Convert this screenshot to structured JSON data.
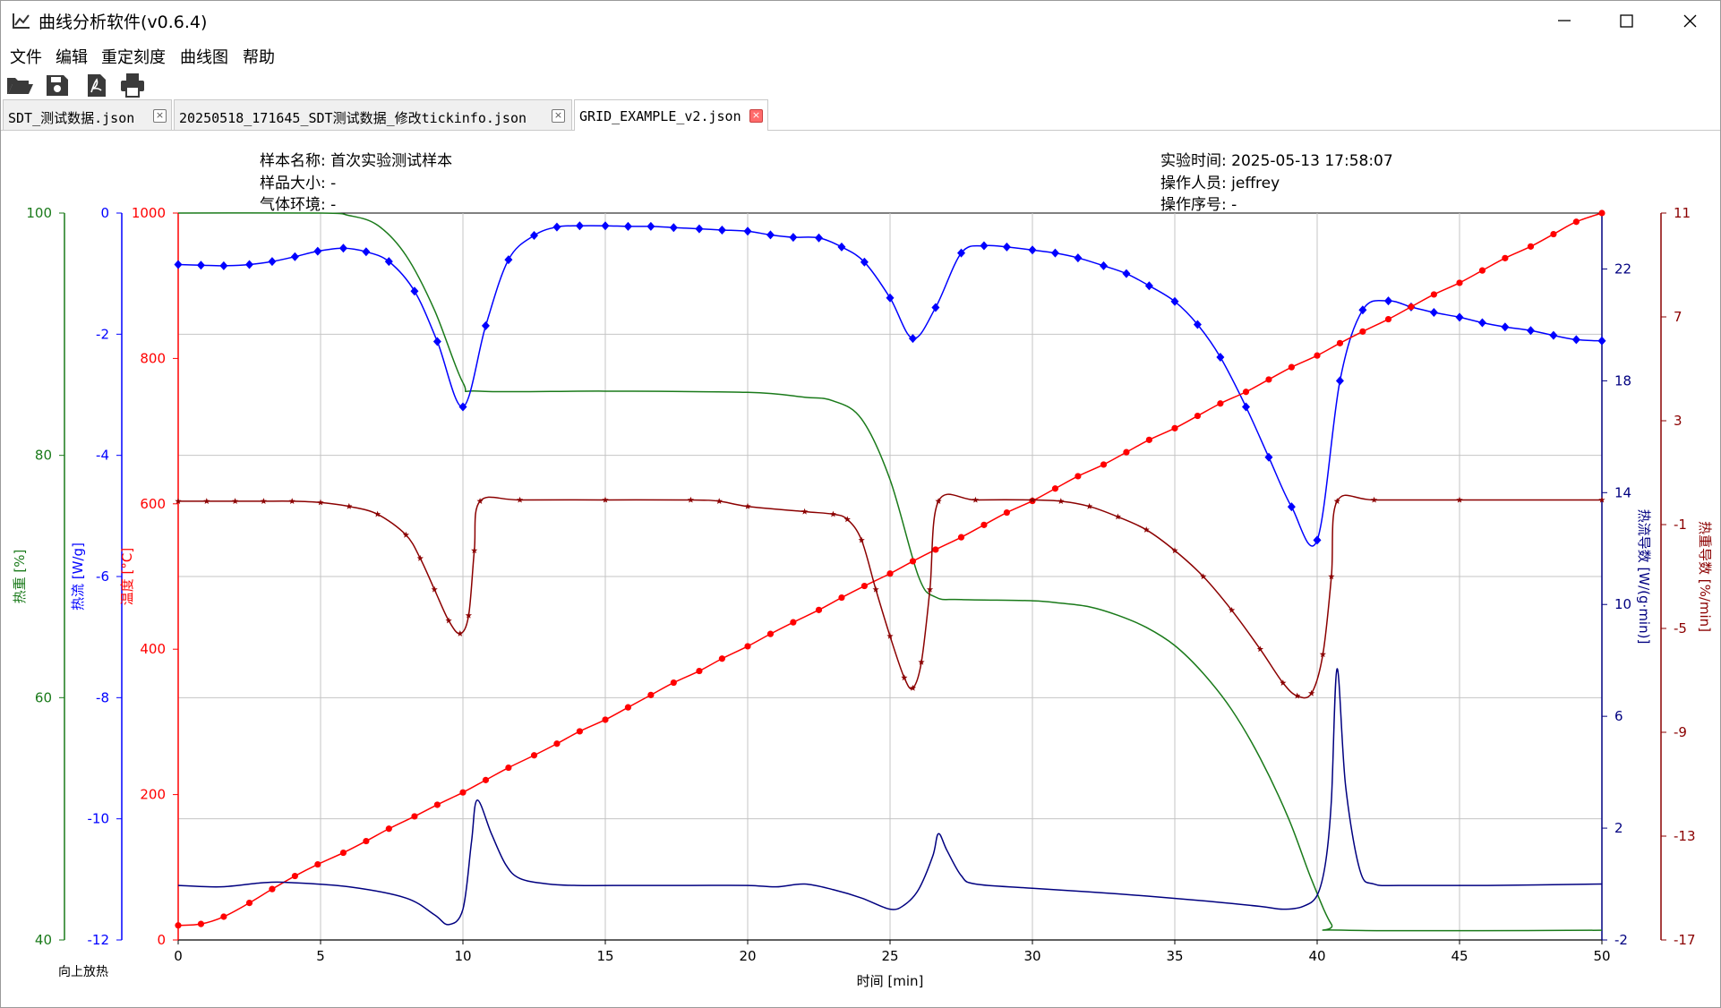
{
  "window": {
    "title": "曲线分析软件(v0.6.4)"
  },
  "menu": [
    "文件",
    "编辑",
    "重定刻度",
    "曲线图",
    "帮助"
  ],
  "toolbar": [
    {
      "icon": "folder-open-icon"
    },
    {
      "icon": "save-icon"
    },
    {
      "icon": "export-pdf-icon"
    },
    {
      "icon": "print-icon"
    }
  ],
  "tabs": [
    {
      "label": "SDT_测试数据.json",
      "active": false
    },
    {
      "label": "20250518_171645_SDT测试数据_修改tickinfo.json",
      "active": false
    },
    {
      "label": "GRID_EXAMPLE_v2.json",
      "active": true
    }
  ],
  "info": {
    "sample_name": "样本名称: 首次实验测试样本",
    "sample_size": "样品大小: -",
    "atmosphere": "气体环境: -",
    "exp_time": "实验时间: 2025-05-13 17:58:07",
    "operator": "操作人员: jeffrey",
    "op_number": "操作序号: -"
  },
  "colors": {
    "green": "#1a7a1a",
    "blue": "#0000ff",
    "red": "#ff0000",
    "navy": "#000080",
    "darkred": "#8b0000"
  },
  "chart_data": {
    "type": "line",
    "grid": true,
    "xlabel": "时间 [min]",
    "xlim": [
      0,
      50
    ],
    "xticks": [
      0,
      5,
      10,
      15,
      20,
      25,
      30,
      35,
      40,
      45,
      50
    ],
    "footnote": "向上放热",
    "axes": [
      {
        "id": "tg",
        "label": "热重 [%]",
        "side": "left",
        "color": "#1a7a1a",
        "lim": [
          40,
          100
        ],
        "ticks": [
          40,
          60,
          80,
          100
        ]
      },
      {
        "id": "hf",
        "label": "热流 [W/g]",
        "side": "left",
        "color": "#0000ff",
        "lim": [
          -12,
          0
        ],
        "ticks": [
          -12,
          -10,
          -8,
          -6,
          -4,
          -2,
          0
        ]
      },
      {
        "id": "temp",
        "label": "温度 [°C]",
        "side": "left",
        "color": "#ff0000",
        "lim": [
          0,
          1000
        ],
        "ticks": [
          0,
          200,
          400,
          600,
          800,
          1000
        ]
      },
      {
        "id": "dhf",
        "label": "热流导数 [W/(g·min)]",
        "side": "right",
        "color": "#000080",
        "lim": [
          -2,
          24
        ],
        "ticks": [
          -2,
          2,
          6,
          10,
          14,
          18,
          22
        ]
      },
      {
        "id": "dtg",
        "label": "热重导数 [%/min]",
        "side": "right",
        "color": "#8b0000",
        "lim": [
          -17,
          11
        ],
        "ticks": [
          -17,
          -13,
          -9,
          -5,
          -1,
          3,
          7,
          11
        ]
      }
    ],
    "series": [
      {
        "axis": "tg",
        "color": "#1a7a1a",
        "marker": "none",
        "points": [
          [
            0,
            100
          ],
          [
            5,
            100
          ],
          [
            6,
            99.8
          ],
          [
            7,
            99
          ],
          [
            8,
            96.5
          ],
          [
            9,
            92
          ],
          [
            10,
            86
          ],
          [
            10.6,
            85.3
          ],
          [
            15,
            85.3
          ],
          [
            20,
            85.2
          ],
          [
            22,
            84.8
          ],
          [
            23,
            84.5
          ],
          [
            24,
            83
          ],
          [
            25,
            78
          ],
          [
            26,
            70
          ],
          [
            26.6,
            68.3
          ],
          [
            27.5,
            68.1
          ],
          [
            30,
            68
          ],
          [
            31,
            67.8
          ],
          [
            32,
            67.5
          ],
          [
            33,
            66.8
          ],
          [
            34,
            65.8
          ],
          [
            35,
            64.3
          ],
          [
            36,
            62
          ],
          [
            37,
            59
          ],
          [
            38,
            55
          ],
          [
            39,
            50
          ],
          [
            39.8,
            45
          ],
          [
            40.5,
            41.3
          ],
          [
            41,
            40.8
          ],
          [
            50,
            40.8
          ]
        ]
      },
      {
        "axis": "hf",
        "color": "#0000ff",
        "marker": "diamond",
        "points": [
          [
            0,
            -0.85
          ],
          [
            0.8,
            -0.86
          ],
          [
            1.6,
            -0.87
          ],
          [
            2.5,
            -0.85
          ],
          [
            3.3,
            -0.8
          ],
          [
            4.1,
            -0.72
          ],
          [
            4.9,
            -0.63
          ],
          [
            5.8,
            -0.58
          ],
          [
            6.6,
            -0.64
          ],
          [
            7.4,
            -0.8
          ],
          [
            8.3,
            -1.29
          ],
          [
            9.1,
            -2.12
          ],
          [
            10,
            -3.2
          ],
          [
            10.8,
            -1.86
          ],
          [
            11.6,
            -0.77
          ],
          [
            12.5,
            -0.37
          ],
          [
            13.3,
            -0.23
          ],
          [
            14.1,
            -0.21
          ],
          [
            15,
            -0.21
          ],
          [
            15.8,
            -0.22
          ],
          [
            16.6,
            -0.22
          ],
          [
            17.4,
            -0.24
          ],
          [
            18.3,
            -0.26
          ],
          [
            19.1,
            -0.28
          ],
          [
            20,
            -0.3
          ],
          [
            20.8,
            -0.36
          ],
          [
            21.6,
            -0.4
          ],
          [
            22.5,
            -0.41
          ],
          [
            23.3,
            -0.56
          ],
          [
            24.1,
            -0.81
          ],
          [
            25,
            -1.4
          ],
          [
            25.8,
            -2.07
          ],
          [
            26.6,
            -1.56
          ],
          [
            27.5,
            -0.66
          ],
          [
            28.3,
            -0.54
          ],
          [
            29.1,
            -0.56
          ],
          [
            30,
            -0.61
          ],
          [
            30.8,
            -0.66
          ],
          [
            31.6,
            -0.74
          ],
          [
            32.5,
            -0.87
          ],
          [
            33.3,
            -1.0
          ],
          [
            34.1,
            -1.2
          ],
          [
            35,
            -1.46
          ],
          [
            35.8,
            -1.84
          ],
          [
            36.6,
            -2.38
          ],
          [
            37.5,
            -3.2
          ],
          [
            38.3,
            -4.03
          ],
          [
            39.1,
            -4.85
          ],
          [
            40,
            -5.4
          ],
          [
            40.8,
            -2.77
          ],
          [
            41.6,
            -1.6
          ],
          [
            42.5,
            -1.45
          ],
          [
            43.3,
            -1.55
          ],
          [
            44.1,
            -1.64
          ],
          [
            45,
            -1.72
          ],
          [
            45.8,
            -1.81
          ],
          [
            46.6,
            -1.88
          ],
          [
            47.5,
            -1.94
          ],
          [
            48.3,
            -2.02
          ],
          [
            49.1,
            -2.09
          ],
          [
            50,
            -2.11
          ]
        ]
      },
      {
        "axis": "temp",
        "color": "#ff0000",
        "marker": "circle",
        "points": [
          [
            0,
            20
          ],
          [
            0.8,
            22
          ],
          [
            1.6,
            32
          ],
          [
            2.5,
            51
          ],
          [
            3.3,
            70
          ],
          [
            4.1,
            88
          ],
          [
            4.9,
            104
          ],
          [
            5.8,
            120
          ],
          [
            6.6,
            136
          ],
          [
            7.4,
            153
          ],
          [
            8.3,
            170
          ],
          [
            9.1,
            186
          ],
          [
            10,
            203
          ],
          [
            10.8,
            220
          ],
          [
            11.6,
            237
          ],
          [
            12.5,
            254
          ],
          [
            13.3,
            270
          ],
          [
            14.1,
            287
          ],
          [
            15,
            303
          ],
          [
            15.8,
            320
          ],
          [
            16.6,
            337
          ],
          [
            17.4,
            354
          ],
          [
            18.3,
            370
          ],
          [
            19.1,
            387
          ],
          [
            20,
            404
          ],
          [
            20.8,
            421
          ],
          [
            21.6,
            437
          ],
          [
            22.5,
            454
          ],
          [
            23.3,
            471
          ],
          [
            24.1,
            487
          ],
          [
            25,
            504
          ],
          [
            25.8,
            521
          ],
          [
            26.6,
            537
          ],
          [
            27.5,
            554
          ],
          [
            28.3,
            571
          ],
          [
            29.1,
            588
          ],
          [
            30,
            604
          ],
          [
            30.8,
            621
          ],
          [
            31.6,
            638
          ],
          [
            32.5,
            654
          ],
          [
            33.3,
            671
          ],
          [
            34.1,
            688
          ],
          [
            35,
            704
          ],
          [
            35.8,
            721
          ],
          [
            36.6,
            738
          ],
          [
            37.5,
            754
          ],
          [
            38.3,
            771
          ],
          [
            39.1,
            788
          ],
          [
            40,
            804
          ],
          [
            40.8,
            821
          ],
          [
            41.6,
            837
          ],
          [
            42.5,
            854
          ],
          [
            43.3,
            871
          ],
          [
            44.1,
            888
          ],
          [
            45,
            904
          ],
          [
            45.8,
            921
          ],
          [
            46.6,
            938
          ],
          [
            47.5,
            954
          ],
          [
            48.3,
            971
          ],
          [
            49.1,
            988
          ],
          [
            50,
            1000
          ]
        ]
      },
      {
        "axis": "dhf",
        "color": "#000080",
        "marker": "none",
        "points": [
          [
            0,
            -0.05
          ],
          [
            1.5,
            -0.1
          ],
          [
            3,
            0.05
          ],
          [
            4,
            0.05
          ],
          [
            6,
            -0.1
          ],
          [
            8,
            -0.5
          ],
          [
            9,
            -1.1
          ],
          [
            9.5,
            -1.45
          ],
          [
            10,
            -0.9
          ],
          [
            10.3,
            1.5
          ],
          [
            10.5,
            3.0
          ],
          [
            11,
            1.8
          ],
          [
            11.5,
            0.7
          ],
          [
            12,
            0.2
          ],
          [
            13,
            0.0
          ],
          [
            14,
            -0.05
          ],
          [
            16,
            -0.05
          ],
          [
            18,
            -0.05
          ],
          [
            20,
            -0.05
          ],
          [
            21,
            -0.1
          ],
          [
            22,
            0.0
          ],
          [
            23,
            -0.2
          ],
          [
            24,
            -0.5
          ],
          [
            25,
            -0.9
          ],
          [
            25.5,
            -0.75
          ],
          [
            26,
            -0.2
          ],
          [
            26.5,
            1.0
          ],
          [
            26.7,
            1.8
          ],
          [
            27,
            1.2
          ],
          [
            27.5,
            0.3
          ],
          [
            28,
            0.0
          ],
          [
            30,
            -0.15
          ],
          [
            33,
            -0.35
          ],
          [
            36,
            -0.6
          ],
          [
            38,
            -0.8
          ],
          [
            38.8,
            -0.9
          ],
          [
            39.5,
            -0.8
          ],
          [
            40,
            -0.4
          ],
          [
            40.3,
            0.8
          ],
          [
            40.5,
            3.0
          ],
          [
            40.7,
            7.7
          ],
          [
            41,
            3.5
          ],
          [
            41.5,
            0.5
          ],
          [
            42,
            0.0
          ],
          [
            43,
            -0.05
          ],
          [
            46,
            -0.05
          ],
          [
            50,
            0.0
          ]
        ]
      },
      {
        "axis": "dtg",
        "color": "#8b0000",
        "marker": "star",
        "points": [
          [
            0,
            -0.1
          ],
          [
            1,
            -0.1
          ],
          [
            2,
            -0.1
          ],
          [
            3,
            -0.1
          ],
          [
            4,
            -0.1
          ],
          [
            5,
            -0.15
          ],
          [
            6,
            -0.3
          ],
          [
            7,
            -0.6
          ],
          [
            8,
            -1.4
          ],
          [
            8.5,
            -2.3
          ],
          [
            9,
            -3.5
          ],
          [
            9.5,
            -4.7
          ],
          [
            9.9,
            -5.2
          ],
          [
            10.2,
            -4.5
          ],
          [
            10.4,
            -2.0
          ],
          [
            10.6,
            -0.1
          ],
          [
            12,
            -0.05
          ],
          [
            15,
            -0.05
          ],
          [
            18,
            -0.05
          ],
          [
            19,
            -0.1
          ],
          [
            20,
            -0.3
          ],
          [
            22,
            -0.5
          ],
          [
            23,
            -0.6
          ],
          [
            23.5,
            -0.8
          ],
          [
            24,
            -1.6
          ],
          [
            24.5,
            -3.5
          ],
          [
            25,
            -5.3
          ],
          [
            25.5,
            -6.9
          ],
          [
            25.8,
            -7.3
          ],
          [
            26.1,
            -6.3
          ],
          [
            26.4,
            -3.5
          ],
          [
            26.7,
            -0.1
          ],
          [
            28,
            -0.05
          ],
          [
            30,
            -0.05
          ],
          [
            31,
            -0.1
          ],
          [
            32,
            -0.3
          ],
          [
            33,
            -0.7
          ],
          [
            34,
            -1.2
          ],
          [
            35,
            -2.0
          ],
          [
            36,
            -3.0
          ],
          [
            37,
            -4.3
          ],
          [
            38,
            -5.8
          ],
          [
            38.8,
            -7.1
          ],
          [
            39.3,
            -7.6
          ],
          [
            39.8,
            -7.5
          ],
          [
            40.2,
            -6.0
          ],
          [
            40.5,
            -3.0
          ],
          [
            40.7,
            -0.1
          ],
          [
            42,
            -0.05
          ],
          [
            45,
            -0.05
          ],
          [
            50,
            -0.05
          ]
        ]
      }
    ]
  }
}
